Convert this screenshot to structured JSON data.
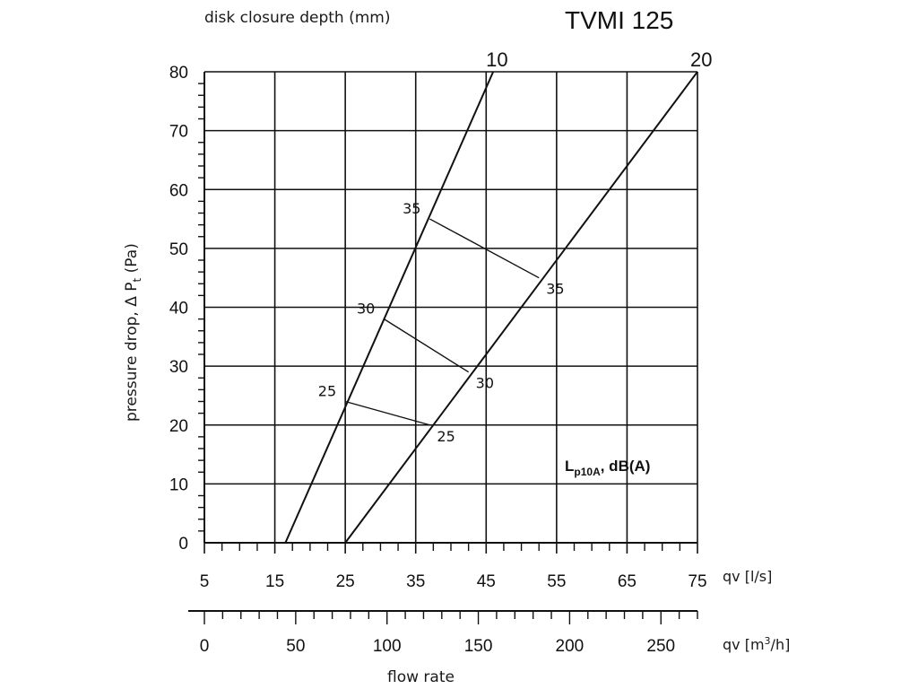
{
  "title": "TVMI 125",
  "top_label": "disk closure depth (mm)",
  "chart_data": {
    "type": "line",
    "title": "TVMI 125",
    "xlabel": "flow rate",
    "ylabel": "pressure drop,  Δ Pt (Pa)",
    "ylabel_parts": {
      "main": "pressure drop,  Δ P",
      "sub": "t",
      "unit": " (Pa)"
    },
    "x_axis_ls": {
      "label": "qv [l/s]",
      "range": [
        5,
        75
      ],
      "ticks": [
        5,
        15,
        25,
        35,
        45,
        55,
        65,
        75
      ]
    },
    "x_axis_m3h": {
      "label_main": "qv [m",
      "label_sup": "3",
      "label_end": "/h]",
      "range": [
        0,
        270
      ],
      "ticks": [
        0,
        50,
        100,
        150,
        200,
        250
      ]
    },
    "y_axis": {
      "range": [
        0,
        80
      ],
      "ticks": [
        0,
        10,
        20,
        30,
        40,
        50,
        60,
        70,
        80
      ]
    },
    "grid": true,
    "series": [
      {
        "name": "10",
        "x": [
          16.5,
          46.0
        ],
        "y": [
          0,
          80
        ]
      },
      {
        "name": "20",
        "x": [
          25.0,
          75.0
        ],
        "y": [
          0,
          80
        ]
      }
    ],
    "sound_lines": {
      "label_main": "L",
      "label_sub": "p10A",
      "label_end": ", dB(A)",
      "lines": [
        {
          "level": "25",
          "from": [
            25.0,
            24.0
          ],
          "to": [
            37.0,
            20.0
          ]
        },
        {
          "level": "30",
          "from": [
            30.5,
            38.0
          ],
          "to": [
            42.5,
            29.0
          ]
        },
        {
          "level": "35",
          "from": [
            37.0,
            55.0
          ],
          "to": [
            52.5,
            45.0
          ]
        }
      ]
    }
  }
}
